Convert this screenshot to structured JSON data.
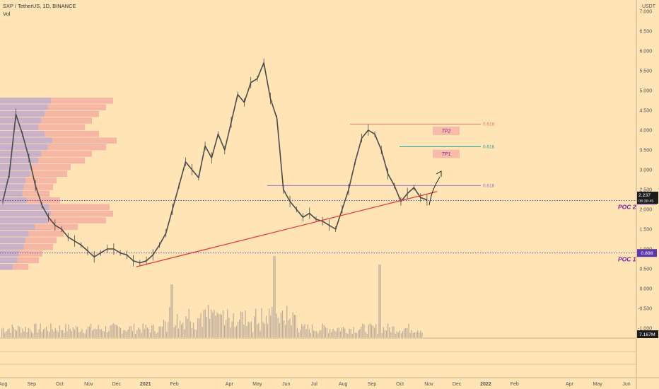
{
  "header": {
    "symbol_line": "SXP / TetherUS, 1D, BINANCE",
    "indicator": "Vol",
    "currency": "USDT"
  },
  "colors": {
    "background": "#ffe4b5",
    "candle": "#4a4a4a",
    "trendline": "#e53935",
    "poc_line": "#5e35b1",
    "fib_red": "#e57373",
    "fib_teal": "#26a69a",
    "fib_purple": "#9575cd",
    "volume": "#b9a99a",
    "profile_pink": "#ef9a9a",
    "profile_purple": "#9c88d6",
    "annotation_text": "#7b1fa2"
  },
  "chart_data": {
    "type": "line",
    "title": "SXP / TetherUS, 1D, BINANCE",
    "xlabel": "",
    "ylabel": "",
    "ylim": [
      -1.25,
      7.25
    ],
    "y_ticks": [
      "7.000",
      "6.500",
      "6.000",
      "5.500",
      "5.000",
      "4.500",
      "4.000",
      "3.500",
      "3.000",
      "2.500",
      "2.000",
      "1.500",
      "1.000",
      "0.500",
      "0.000",
      "-0.500",
      "-1.000"
    ],
    "x_ticks": [
      "Aug",
      "Sep",
      "Oct",
      "Nov",
      "Dec",
      "2021",
      "Feb",
      "Apr",
      "May",
      "Jun",
      "Jul",
      "Aug",
      "Sep",
      "Oct",
      "Nov",
      "Dec",
      "2022",
      "Feb",
      "Apr",
      "May",
      "Jun"
    ],
    "x_tick_dates": [
      "2020-08-01",
      "2020-09-01",
      "2020-10-01",
      "2020-11-01",
      "2020-12-01",
      "2021-01-01",
      "2021-02-01",
      "2021-04-01",
      "2021-05-01",
      "2021-06-01",
      "2021-07-01",
      "2021-08-01",
      "2021-09-01",
      "2021-10-01",
      "2021-11-01",
      "2021-12-01",
      "2022-01-01",
      "2022-02-01",
      "2022-04-01",
      "2022-05-01",
      "2022-06-01"
    ],
    "series": [
      {
        "x": [
          "2020-08-01",
          "2020-08-08",
          "2020-08-15",
          "2020-08-22",
          "2020-08-29",
          "2020-09-05",
          "2020-09-12",
          "2020-09-19",
          "2020-09-26",
          "2020-10-03",
          "2020-10-10",
          "2020-10-17",
          "2020-10-24",
          "2020-10-31",
          "2020-11-07",
          "2020-11-14",
          "2020-11-21",
          "2020-11-28",
          "2020-12-05",
          "2020-12-12",
          "2020-12-19",
          "2020-12-26",
          "2021-01-02",
          "2021-01-09",
          "2021-01-16",
          "2021-01-23",
          "2021-01-30",
          "2021-02-06",
          "2021-02-13",
          "2021-02-20",
          "2021-02-27",
          "2021-03-06",
          "2021-03-13",
          "2021-03-20",
          "2021-03-27",
          "2021-04-03",
          "2021-04-10",
          "2021-04-17",
          "2021-04-24",
          "2021-05-01",
          "2021-05-08",
          "2021-05-15",
          "2021-05-22",
          "2021-05-29",
          "2021-06-05",
          "2021-06-12",
          "2021-06-19",
          "2021-06-26",
          "2021-07-03",
          "2021-07-10",
          "2021-07-17",
          "2021-07-24",
          "2021-07-31",
          "2021-08-07",
          "2021-08-14",
          "2021-08-21",
          "2021-08-28",
          "2021-09-04",
          "2021-09-11",
          "2021-09-18",
          "2021-09-25",
          "2021-10-02",
          "2021-10-09",
          "2021-10-16",
          "2021-10-23",
          "2021-10-30"
        ],
        "values": [
          2.2,
          2.9,
          4.4,
          3.9,
          3.3,
          2.6,
          2.1,
          1.8,
          1.6,
          1.5,
          1.3,
          1.2,
          1.1,
          0.95,
          0.8,
          0.9,
          1.0,
          1.0,
          0.9,
          0.85,
          0.7,
          0.65,
          0.7,
          0.85,
          1.1,
          1.4,
          2.0,
          2.6,
          3.2,
          3.0,
          2.8,
          3.6,
          3.3,
          3.9,
          3.5,
          4.2,
          4.9,
          4.7,
          5.2,
          5.3,
          5.7,
          4.8,
          4.3,
          2.5,
          2.2,
          2.0,
          1.8,
          1.9,
          1.75,
          1.7,
          1.6,
          1.5,
          2.0,
          2.5,
          3.2,
          3.8,
          4.0,
          3.9,
          3.5,
          2.9,
          2.6,
          2.2,
          2.4,
          2.55,
          2.3,
          2.24
        ]
      }
    ],
    "last_price": "2.237",
    "countdown": "08:38:45",
    "volume_label": "7.167M",
    "poc_levels": [
      {
        "name": "POC 2",
        "price": "2.222",
        "value": 2.222
      },
      {
        "name": "POC 1",
        "price": "0.898",
        "value": 0.898
      }
    ],
    "fib_levels": [
      {
        "label": "0.618",
        "value": 4.15
      },
      {
        "label": "0.618",
        "value": 3.58
      },
      {
        "label": "0.618",
        "value": 2.6
      }
    ],
    "targets": [
      {
        "name": "TP2",
        "value": 3.98
      },
      {
        "name": "TP1",
        "value": 3.4
      }
    ],
    "trendline": {
      "start": {
        "x": "2020-12-22",
        "y": 0.55
      },
      "end": {
        "x": "2021-11-10",
        "y": 2.45
      }
    }
  }
}
